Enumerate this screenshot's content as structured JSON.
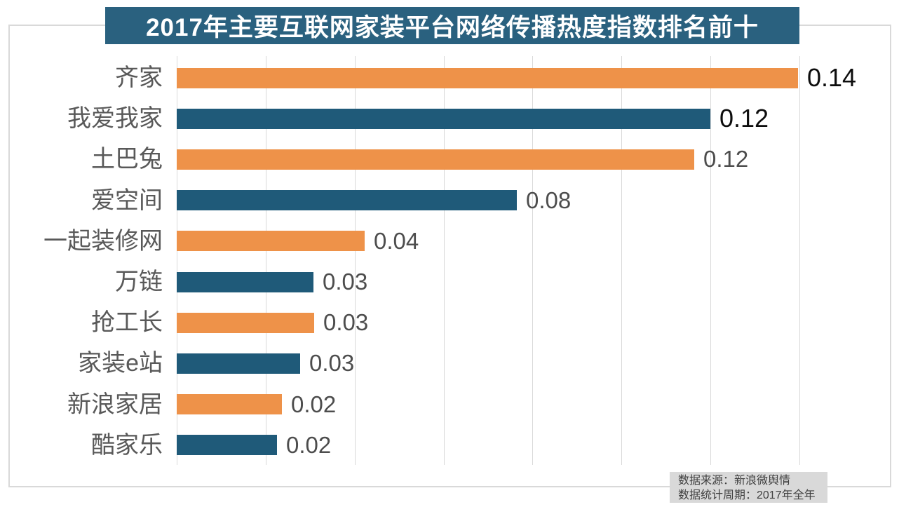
{
  "title": {
    "text": "2017年主要互联网家装平台网络传播热度指数排名前十",
    "bg_color": "#2A617F",
    "text_color": "#FFFFFF"
  },
  "source_box": {
    "line1": "数据来源：新浪微舆情",
    "line2": "数据统计周期：2017年全年",
    "bg_color": "#D9D9D9",
    "text_color": "#404040"
  },
  "colors": {
    "bar_orange": "#EE9249",
    "bar_blue": "#1F5A79",
    "gridline": "#D9D9D9",
    "frame_border": "#D9D9D9",
    "category_text": "#595959",
    "value_text_gray": "#4D4D4D",
    "value_text_black": "#0D0D0D"
  },
  "chart_data": {
    "type": "bar",
    "orientation": "horizontal",
    "title": "2017年主要互联网家装平台网络传播热度指数排名前十",
    "categories": [
      "齐家",
      "我爱我家",
      "土巴兔",
      "爱空间",
      "一起装修网",
      "万链",
      "抢工长",
      "家装e站",
      "新浪家居",
      "酷家乐"
    ],
    "values": [
      0.14,
      0.12,
      0.12,
      0.08,
      0.04,
      0.03,
      0.03,
      0.03,
      0.02,
      0.02
    ],
    "value_labels": [
      "0.14",
      "0.12",
      "0.12",
      "0.08",
      "0.04",
      "0.03",
      "0.03",
      "0.03",
      "0.02",
      "0.02"
    ],
    "bar_lengths_precise": [
      0.1397,
      0.12,
      0.1164,
      0.0765,
      0.0423,
      0.0307,
      0.0309,
      0.0277,
      0.0237,
      0.0225
    ],
    "bar_color_sequence": [
      "#EE9249",
      "#1F5A79",
      "#EE9249",
      "#1F5A79",
      "#EE9249",
      "#1F5A79",
      "#EE9249",
      "#1F5A79",
      "#EE9249",
      "#1F5A79"
    ],
    "value_label_emphasis": [
      true,
      true,
      false,
      false,
      false,
      false,
      false,
      false,
      false,
      false
    ],
    "xlabel": "",
    "ylabel": "",
    "xlim": [
      0,
      0.14
    ],
    "gridline_interval": 0.02,
    "grid": "vertical-only",
    "legend": "none"
  }
}
